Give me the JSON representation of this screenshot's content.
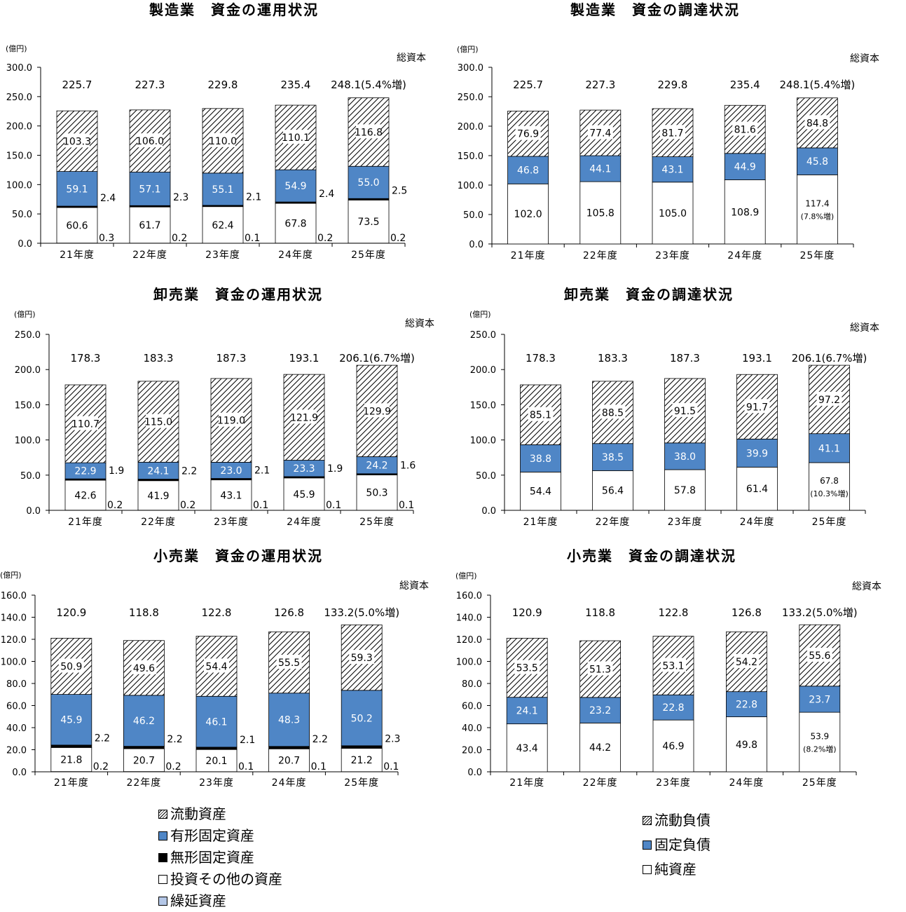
{
  "unit": "(億円)",
  "total_label": "総資本",
  "year_labels": [
    "21年度",
    "22年度",
    "23年度",
    "24年度",
    "25年度"
  ],
  "colors": {
    "blue": "#4f86c6",
    "black": "#000000",
    "white": "#ffffff",
    "deferred": "#b4c7e7"
  },
  "legend_use": [
    {
      "label": "流動資産",
      "pattern": "hatch"
    },
    {
      "label": "有形固定資産",
      "color": "#4f86c6"
    },
    {
      "label": "無形固定資産",
      "color": "#000000"
    },
    {
      "label": "投資その他の資産",
      "color": "#ffffff"
    },
    {
      "label": "繰延資産",
      "color": "#b4c7e7"
    }
  ],
  "legend_src": [
    {
      "label": "流動負債",
      "pattern": "hatch"
    },
    {
      "label": "固定負債",
      "color": "#4f86c6"
    },
    {
      "label": "純資産",
      "color": "#ffffff"
    }
  ],
  "chart_data": [
    {
      "type": "bar",
      "stacked": true,
      "kind": "use",
      "title": "製造業　資金の運用状況",
      "ylim": [
        0,
        300
      ],
      "yticks": [
        0,
        50,
        100,
        150,
        200,
        250,
        300
      ],
      "categories": [
        "21年度",
        "22年度",
        "23年度",
        "24年度",
        "25年度"
      ],
      "series": [
        {
          "name": "繰延資産",
          "values": [
            0.3,
            0.2,
            0.1,
            0.2,
            0.2
          ]
        },
        {
          "name": "投資その他の資産",
          "values": [
            60.6,
            61.7,
            62.4,
            67.8,
            73.5
          ]
        },
        {
          "name": "無形固定資産",
          "values": [
            2.4,
            2.3,
            2.1,
            2.4,
            2.5
          ]
        },
        {
          "name": "有形固定資産",
          "values": [
            59.1,
            57.1,
            55.1,
            54.9,
            55.0
          ]
        },
        {
          "name": "流動資産",
          "values": [
            103.3,
            106.0,
            110.0,
            110.1,
            116.8
          ]
        }
      ],
      "totals": [
        "225.7",
        "227.3",
        "229.8",
        "235.4",
        "248.1(5.4%増)"
      ]
    },
    {
      "type": "bar",
      "stacked": true,
      "kind": "src",
      "title": "製造業　資金の調達状況",
      "ylim": [
        0,
        300
      ],
      "yticks": [
        0,
        50,
        100,
        150,
        200,
        250,
        300
      ],
      "categories": [
        "21年度",
        "22年度",
        "23年度",
        "24年度",
        "25年度"
      ],
      "series": [
        {
          "name": "純資産",
          "values": [
            102.0,
            105.8,
            105.0,
            108.9,
            117.4
          ],
          "labels": [
            "102.0",
            "105.8",
            "105.0",
            "108.9",
            "117.4\n(7.8%増)"
          ]
        },
        {
          "name": "固定負債",
          "values": [
            46.8,
            44.1,
            43.1,
            44.9,
            45.8
          ]
        },
        {
          "name": "流動負債",
          "values": [
            76.9,
            77.4,
            81.7,
            81.6,
            84.8
          ]
        }
      ],
      "totals": [
        "225.7",
        "227.3",
        "229.8",
        "235.4",
        "248.1(5.4%増)"
      ]
    },
    {
      "type": "bar",
      "stacked": true,
      "kind": "use",
      "title": "卸売業　資金の運用状況",
      "ylim": [
        0,
        250
      ],
      "yticks": [
        0,
        50,
        100,
        150,
        200,
        250
      ],
      "categories": [
        "21年度",
        "22年度",
        "23年度",
        "24年度",
        "25年度"
      ],
      "series": [
        {
          "name": "繰延資産",
          "values": [
            0.2,
            0.2,
            0.1,
            0.1,
            0.1
          ]
        },
        {
          "name": "投資その他の資産",
          "values": [
            42.6,
            41.9,
            43.1,
            45.9,
            50.3
          ]
        },
        {
          "name": "無形固定資産",
          "values": [
            1.9,
            2.2,
            2.1,
            1.9,
            1.6
          ]
        },
        {
          "name": "有形固定資産",
          "values": [
            22.9,
            24.1,
            23.0,
            23.3,
            24.2
          ]
        },
        {
          "name": "流動資産",
          "values": [
            110.7,
            115.0,
            119.0,
            121.9,
            129.9
          ]
        }
      ],
      "totals": [
        "178.3",
        "183.3",
        "187.3",
        "193.1",
        "206.1(6.7%増)"
      ]
    },
    {
      "type": "bar",
      "stacked": true,
      "kind": "src",
      "title": "卸売業　資金の調達状況",
      "ylim": [
        0,
        250
      ],
      "yticks": [
        0,
        50,
        100,
        150,
        200,
        250
      ],
      "categories": [
        "21年度",
        "22年度",
        "23年度",
        "24年度",
        "25年度"
      ],
      "series": [
        {
          "name": "純資産",
          "values": [
            54.4,
            56.4,
            57.8,
            61.4,
            67.8
          ],
          "labels": [
            "54.4",
            "56.4",
            "57.8",
            "61.4",
            "67.8\n(10.3%増)"
          ]
        },
        {
          "name": "固定負債",
          "values": [
            38.8,
            38.5,
            38.0,
            39.9,
            41.1
          ]
        },
        {
          "name": "流動負債",
          "values": [
            85.1,
            88.5,
            91.5,
            91.7,
            97.2
          ]
        }
      ],
      "totals": [
        "178.3",
        "183.3",
        "187.3",
        "193.1",
        "206.1(6.7%増)"
      ]
    },
    {
      "type": "bar",
      "stacked": true,
      "kind": "use",
      "title": "小売業　資金の運用状況",
      "ylim": [
        0,
        160
      ],
      "yticks": [
        0,
        20,
        40,
        60,
        80,
        100,
        120,
        140,
        160
      ],
      "categories": [
        "21年度",
        "22年度",
        "23年度",
        "24年度",
        "25年度"
      ],
      "series": [
        {
          "name": "繰延資産",
          "values": [
            0.2,
            0.2,
            0.1,
            0.1,
            0.1
          ]
        },
        {
          "name": "投資その他の資産",
          "values": [
            21.8,
            20.7,
            20.1,
            20.7,
            21.2
          ]
        },
        {
          "name": "無形固定資産",
          "values": [
            2.2,
            2.2,
            2.1,
            2.2,
            2.3
          ]
        },
        {
          "name": "有形固定資産",
          "values": [
            45.9,
            46.2,
            46.1,
            48.3,
            50.2
          ]
        },
        {
          "name": "流動資産",
          "values": [
            50.9,
            49.6,
            54.4,
            55.5,
            59.3
          ]
        }
      ],
      "totals": [
        "120.9",
        "118.8",
        "122.8",
        "126.8",
        "133.2(5.0%増)"
      ]
    },
    {
      "type": "bar",
      "stacked": true,
      "kind": "src",
      "title": "小売業　資金の調達状況",
      "ylim": [
        0,
        160
      ],
      "yticks": [
        0,
        20,
        40,
        60,
        80,
        100,
        120,
        140,
        160
      ],
      "categories": [
        "21年度",
        "22年度",
        "23年度",
        "24年度",
        "25年度"
      ],
      "series": [
        {
          "name": "純資産",
          "values": [
            43.4,
            44.2,
            46.9,
            49.8,
            53.9
          ],
          "labels": [
            "43.4",
            "44.2",
            "46.9",
            "49.8",
            "53.9\n(8.2%増)"
          ]
        },
        {
          "name": "固定負債",
          "values": [
            24.1,
            23.2,
            22.8,
            22.8,
            23.7
          ]
        },
        {
          "name": "流動負債",
          "values": [
            53.5,
            51.3,
            53.1,
            54.2,
            55.6
          ]
        }
      ],
      "totals": [
        "120.9",
        "118.8",
        "122.8",
        "126.8",
        "133.2(5.0%増)"
      ]
    }
  ]
}
